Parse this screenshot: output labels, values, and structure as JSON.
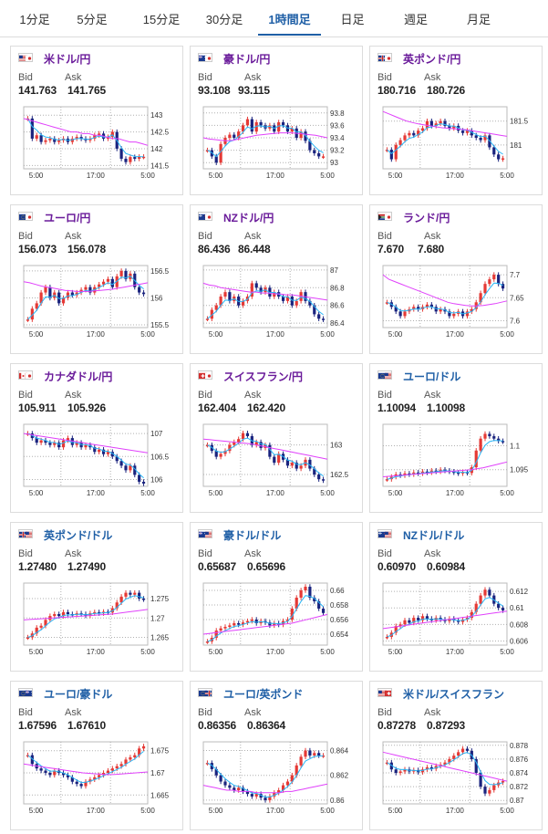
{
  "tabs": [
    {
      "label": "1分足",
      "active": false
    },
    {
      "label": "5分足",
      "active": false
    },
    {
      "label": "15分足",
      "active": false
    },
    {
      "label": "30分足",
      "active": false
    },
    {
      "label": "1時間足",
      "active": true
    },
    {
      "label": "日足",
      "active": false
    },
    {
      "label": "週足",
      "active": false
    },
    {
      "label": "月足",
      "active": false
    }
  ],
  "labels": {
    "bid": "Bid",
    "ask": "Ask"
  },
  "colors": {
    "up": "#e53935",
    "down": "#1a237e",
    "ma_short": "#29b6f6",
    "ma_long": "#e040fb",
    "grid": "#b0b0b0",
    "active_tab": "#1f5fa6",
    "name_jpy": "#6a1b9a",
    "name_usd": "#1f5fa6"
  },
  "pairs": [
    {
      "name": "米ドル/円",
      "bid": "141.763",
      "ask": "141.765",
      "flag": "us",
      "quote": "jp",
      "xticks": [
        "5:00",
        "17:00",
        "5:00"
      ],
      "yticks": [
        "143",
        "142.5",
        "142",
        "141.5"
      ],
      "ymin": 141.4,
      "ymax": 143.25,
      "closes": [
        142.9,
        142.3,
        142.4,
        142.2,
        142.25,
        142.3,
        142.2,
        142.25,
        142.3,
        142.2,
        142.3,
        142.35,
        142.3,
        142.25,
        142.3,
        142.4,
        142.45,
        142.3,
        142.35,
        142.5,
        142.0,
        141.7,
        141.6,
        141.75,
        141.7,
        141.76,
        141.76
      ],
      "ma_long": [
        142.9,
        142.85,
        142.8,
        142.75,
        142.7,
        142.65,
        142.6,
        142.55,
        142.5,
        142.5,
        142.45,
        142.45,
        142.4,
        142.4,
        142.35,
        142.3,
        142.3,
        142.25,
        142.2,
        142.2,
        142.15,
        142.1
      ]
    },
    {
      "name": "豪ドル/円",
      "bid": "93.108",
      "ask": "93.115",
      "flag": "au",
      "quote": "jp",
      "xticks": [
        "5:00",
        "17:00",
        "5:00"
      ],
      "yticks": [
        "93.8",
        "93.6",
        "93.4",
        "93.2",
        "93"
      ],
      "ymin": 92.9,
      "ymax": 93.9,
      "closes": [
        93.2,
        93.1,
        93.0,
        93.3,
        93.4,
        93.45,
        93.4,
        93.5,
        93.6,
        93.7,
        93.5,
        93.65,
        93.6,
        93.55,
        93.6,
        93.5,
        93.65,
        93.6,
        93.5,
        93.55,
        93.4,
        93.5,
        93.35,
        93.2,
        93.15,
        93.1,
        93.1
      ],
      "ma_long": [
        93.4,
        93.38,
        93.37,
        93.36,
        93.35,
        93.36,
        93.38,
        93.4,
        93.42,
        93.44,
        93.45,
        93.46,
        93.47,
        93.48,
        93.48,
        93.48,
        93.47,
        93.46,
        93.45,
        93.44,
        93.42,
        93.4
      ]
    },
    {
      "name": "英ポンド/円",
      "bid": "180.716",
      "ask": "180.726",
      "flag": "gb",
      "quote": "jp",
      "xticks": [
        "5:00",
        "17:00",
        "5:00"
      ],
      "yticks": [
        "181.5",
        "181"
      ],
      "ymin": 180.5,
      "ymax": 181.8,
      "closes": [
        180.9,
        180.7,
        181.0,
        181.1,
        181.2,
        181.25,
        181.2,
        181.3,
        181.35,
        181.5,
        181.4,
        181.45,
        181.5,
        181.4,
        181.35,
        181.4,
        181.3,
        181.25,
        181.3,
        181.2,
        181.15,
        181.1,
        181.2,
        180.95,
        180.8,
        180.7,
        180.72
      ],
      "ma_long": [
        181.7,
        181.65,
        181.6,
        181.55,
        181.5,
        181.47,
        181.44,
        181.42,
        181.4,
        181.38,
        181.36,
        181.35,
        181.34,
        181.33,
        181.32,
        181.3,
        181.28,
        181.26,
        181.24,
        181.22,
        181.2,
        181.18
      ]
    },
    {
      "name": "ユーロ/円",
      "bid": "156.073",
      "ask": "156.078",
      "flag": "eu",
      "quote": "jp",
      "xticks": [
        "5:00",
        "17:00",
        "5:00"
      ],
      "yticks": [
        "156.5",
        "156",
        "155.5"
      ],
      "ymin": 155.45,
      "ymax": 156.6,
      "closes": [
        155.6,
        155.8,
        155.9,
        156.1,
        156.2,
        156.0,
        156.1,
        155.9,
        156.0,
        156.1,
        156.05,
        156.1,
        156.15,
        156.2,
        156.1,
        156.2,
        156.25,
        156.3,
        156.35,
        156.2,
        156.4,
        156.5,
        156.35,
        156.45,
        156.2,
        156.1,
        156.07
      ],
      "ma_long": [
        156.3,
        156.28,
        156.25,
        156.22,
        156.2,
        156.18,
        156.16,
        156.14,
        156.13,
        156.12,
        156.12,
        156.12,
        156.13,
        156.14,
        156.15,
        156.16,
        156.18,
        156.2,
        156.22,
        156.24,
        156.26,
        156.28
      ]
    },
    {
      "name": "NZドル/円",
      "bid": "86.436",
      "ask": "86.448",
      "flag": "nz",
      "quote": "jp",
      "xticks": [
        "5:00",
        "17:00",
        "5:00"
      ],
      "yticks": [
        "87",
        "86.8",
        "86.6",
        "86.4"
      ],
      "ymin": 86.35,
      "ymax": 87.05,
      "closes": [
        86.45,
        86.55,
        86.6,
        86.7,
        86.75,
        86.65,
        86.7,
        86.6,
        86.65,
        86.7,
        86.85,
        86.8,
        86.75,
        86.8,
        86.7,
        86.75,
        86.7,
        86.65,
        86.7,
        86.6,
        86.65,
        86.75,
        86.65,
        86.6,
        86.5,
        86.45,
        86.44
      ],
      "ma_long": [
        86.85,
        86.83,
        86.82,
        86.8,
        86.79,
        86.78,
        86.77,
        86.76,
        86.75,
        86.75,
        86.74,
        86.74,
        86.73,
        86.73,
        86.72,
        86.72,
        86.71,
        86.7,
        86.69,
        86.68,
        86.67,
        86.66
      ]
    },
    {
      "name": "ランド/円",
      "bid": "7.670",
      "ask": "7.680",
      "flag": "za",
      "quote": "jp",
      "xticks": [
        "5:00",
        "17:00",
        "5:00"
      ],
      "yticks": [
        "7.7",
        "7.65",
        "7.6"
      ],
      "ymin": 7.585,
      "ymax": 7.72,
      "closes": [
        7.64,
        7.63,
        7.62,
        7.61,
        7.62,
        7.625,
        7.63,
        7.625,
        7.63,
        7.635,
        7.63,
        7.62,
        7.625,
        7.62,
        7.61,
        7.615,
        7.62,
        7.61,
        7.62,
        7.625,
        7.64,
        7.66,
        7.68,
        7.69,
        7.7,
        7.68,
        7.67
      ],
      "ma_long": [
        7.7,
        7.69,
        7.685,
        7.68,
        7.675,
        7.67,
        7.665,
        7.66,
        7.655,
        7.65,
        7.645,
        7.64,
        7.637,
        7.635,
        7.633,
        7.632,
        7.632,
        7.633,
        7.635,
        7.637,
        7.64,
        7.643
      ]
    },
    {
      "name": "カナダドル/円",
      "bid": "105.911",
      "ask": "105.926",
      "flag": "ca",
      "quote": "jp",
      "xticks": [
        "5:00",
        "17:00",
        "5:00"
      ],
      "yticks": [
        "107",
        "106.5",
        "106"
      ],
      "ymin": 105.85,
      "ymax": 107.2,
      "closes": [
        107.0,
        106.9,
        106.8,
        106.85,
        106.8,
        106.75,
        106.8,
        106.7,
        106.85,
        106.9,
        106.75,
        106.8,
        106.7,
        106.75,
        106.7,
        106.6,
        106.65,
        106.55,
        106.6,
        106.5,
        106.4,
        106.3,
        106.2,
        106.3,
        106.1,
        105.95,
        105.91
      ],
      "ma_long": [
        107.0,
        106.98,
        106.96,
        106.94,
        106.92,
        106.9,
        106.88,
        106.86,
        106.84,
        106.82,
        106.8,
        106.78,
        106.76,
        106.74,
        106.72,
        106.7,
        106.68,
        106.66,
        106.64,
        106.62,
        106.6,
        106.58
      ]
    },
    {
      "name": "スイスフラン/円",
      "bid": "162.404",
      "ask": "162.420",
      "flag": "ch",
      "quote": "jp",
      "xticks": [
        "5:00",
        "17:00",
        "5:00"
      ],
      "yticks": [
        "163",
        "162.5"
      ],
      "ymin": 162.3,
      "ymax": 163.35,
      "closes": [
        163.0,
        162.9,
        162.8,
        162.85,
        162.9,
        163.0,
        163.05,
        163.1,
        163.2,
        163.15,
        163.0,
        163.05,
        162.95,
        163.0,
        162.8,
        162.7,
        162.85,
        162.75,
        162.65,
        162.7,
        162.6,
        162.65,
        162.75,
        162.6,
        162.5,
        162.42,
        162.4
      ],
      "ma_long": [
        163.1,
        163.09,
        163.08,
        163.07,
        163.06,
        163.05,
        163.04,
        163.03,
        163.02,
        163.0,
        162.98,
        162.96,
        162.94,
        162.92,
        162.9,
        162.88,
        162.86,
        162.84,
        162.82,
        162.8,
        162.78,
        162.76
      ]
    },
    {
      "name": "ユーロ/ドル",
      "bid": "1.10094",
      "ask": "1.10098",
      "flag": "eu",
      "quote": "us",
      "xticks": [
        "5:00",
        "17:00",
        "5:00"
      ],
      "yticks": [
        "1.1",
        "1.095"
      ],
      "ymin": 1.0915,
      "ymax": 1.1045,
      "closes": [
        1.093,
        1.0935,
        1.094,
        1.0938,
        1.0942,
        1.094,
        1.0944,
        1.0942,
        1.0946,
        1.0944,
        1.0948,
        1.0946,
        1.095,
        1.0948,
        1.0946,
        1.0944,
        1.0942,
        1.0945,
        1.0943,
        1.0955,
        1.099,
        1.1015,
        1.1025,
        1.102,
        1.1015,
        1.101,
        1.1009
      ],
      "ma_long": [
        1.0935,
        1.0936,
        1.0937,
        1.0938,
        1.0939,
        1.094,
        1.0941,
        1.0942,
        1.0943,
        1.0944,
        1.0945,
        1.0946,
        1.0947,
        1.0948,
        1.0949,
        1.095,
        1.0952,
        1.0954,
        1.0957,
        1.096,
        1.0963,
        1.0966
      ]
    },
    {
      "name": "英ポンド/ドル",
      "bid": "1.27480",
      "ask": "1.27490",
      "flag": "gb",
      "quote": "us",
      "xticks": [
        "5:00",
        "17:00",
        "5:00"
      ],
      "yticks": [
        "1.275",
        "1.27",
        "1.265"
      ],
      "ymin": 1.263,
      "ymax": 1.279,
      "closes": [
        1.265,
        1.266,
        1.2675,
        1.268,
        1.2695,
        1.2705,
        1.271,
        1.2705,
        1.2715,
        1.271,
        1.2708,
        1.2712,
        1.271,
        1.2706,
        1.2712,
        1.2715,
        1.2712,
        1.2716,
        1.2714,
        1.2725,
        1.274,
        1.2755,
        1.2765,
        1.276,
        1.2765,
        1.275,
        1.2748
      ],
      "ma_long": [
        1.2695,
        1.2696,
        1.2697,
        1.2698,
        1.2699,
        1.27,
        1.2701,
        1.2702,
        1.2703,
        1.2704,
        1.2705,
        1.2706,
        1.2707,
        1.2708,
        1.2709,
        1.271,
        1.2712,
        1.2714,
        1.2716,
        1.2718,
        1.272,
        1.2722
      ]
    },
    {
      "name": "豪ドル/ドル",
      "bid": "0.65687",
      "ask": "0.65696",
      "flag": "au",
      "quote": "us",
      "xticks": [
        "5:00",
        "17:00",
        "5:00"
      ],
      "yticks": [
        "0.66",
        "0.658",
        "0.656",
        "0.654"
      ],
      "ymin": 0.6525,
      "ymax": 0.661,
      "closes": [
        0.653,
        0.6535,
        0.6545,
        0.6548,
        0.655,
        0.6552,
        0.6555,
        0.6553,
        0.6556,
        0.6558,
        0.656,
        0.6555,
        0.6558,
        0.6556,
        0.6552,
        0.6555,
        0.6553,
        0.6558,
        0.656,
        0.6575,
        0.659,
        0.66,
        0.6605,
        0.659,
        0.6585,
        0.6575,
        0.6569
      ],
      "ma_long": [
        0.654,
        0.6541,
        0.6542,
        0.6543,
        0.6544,
        0.6545,
        0.6546,
        0.6547,
        0.6548,
        0.6549,
        0.655,
        0.6551,
        0.6552,
        0.6553,
        0.6554,
        0.6555,
        0.6557,
        0.6559,
        0.6561,
        0.6563,
        0.6565,
        0.6567
      ]
    },
    {
      "name": "NZドル/ドル",
      "bid": "0.60970",
      "ask": "0.60984",
      "flag": "nz",
      "quote": "us",
      "xticks": [
        "5:00",
        "17:00",
        "5:00"
      ],
      "yticks": [
        "0.612",
        "0.61",
        "0.608",
        "0.606"
      ],
      "ymin": 0.6055,
      "ymax": 0.613,
      "closes": [
        0.6065,
        0.607,
        0.6078,
        0.608,
        0.6085,
        0.6082,
        0.6088,
        0.6085,
        0.609,
        0.6087,
        0.6085,
        0.6088,
        0.6086,
        0.6084,
        0.6087,
        0.6085,
        0.6083,
        0.6086,
        0.6088,
        0.6095,
        0.6105,
        0.6115,
        0.6122,
        0.6115,
        0.6105,
        0.61,
        0.6097
      ],
      "ma_long": [
        0.6075,
        0.6076,
        0.6077,
        0.6078,
        0.6079,
        0.608,
        0.6081,
        0.6082,
        0.6083,
        0.6084,
        0.6085,
        0.6086,
        0.6087,
        0.6088,
        0.6089,
        0.609,
        0.6091,
        0.6092,
        0.6093,
        0.6094,
        0.6095,
        0.6096
      ]
    },
    {
      "name": "ユーロ/豪ドル",
      "bid": "1.67596",
      "ask": "1.67610",
      "flag": "eu",
      "quote": "au",
      "xticks": [
        "5:00",
        "17:00",
        "5:00"
      ],
      "yticks": [
        "1.675",
        "1.67",
        "1.665"
      ],
      "ymin": 1.663,
      "ymax": 1.677,
      "closes": [
        1.674,
        1.672,
        1.671,
        1.6705,
        1.67,
        1.6695,
        1.6705,
        1.67,
        1.6695,
        1.669,
        1.668,
        1.6675,
        1.667,
        1.668,
        1.6685,
        1.669,
        1.6695,
        1.67,
        1.6705,
        1.671,
        1.6715,
        1.672,
        1.673,
        1.6735,
        1.674,
        1.6755,
        1.676
      ],
      "ma_long": [
        1.672,
        1.6718,
        1.6716,
        1.6714,
        1.6712,
        1.671,
        1.6708,
        1.6706,
        1.6704,
        1.6702,
        1.67,
        1.6699,
        1.6698,
        1.6697,
        1.6696,
        1.6696,
        1.6697,
        1.6698,
        1.6699,
        1.67,
        1.6701,
        1.6702
      ]
    },
    {
      "name": "ユーロ/英ポンド",
      "bid": "0.86356",
      "ask": "0.86364",
      "flag": "eu",
      "quote": "gb",
      "xticks": [
        "5:00",
        "17:00",
        "5:00"
      ],
      "yticks": [
        "0.864",
        "0.862",
        "0.86"
      ],
      "ymin": 0.8597,
      "ymax": 0.8647,
      "closes": [
        0.863,
        0.8625,
        0.862,
        0.8615,
        0.8612,
        0.861,
        0.8608,
        0.861,
        0.8607,
        0.8605,
        0.8603,
        0.8605,
        0.8602,
        0.86,
        0.8603,
        0.8606,
        0.8608,
        0.8612,
        0.8615,
        0.862,
        0.8628,
        0.8635,
        0.864,
        0.8636,
        0.8638,
        0.8636,
        0.8636
      ],
      "ma_long": [
        0.8612,
        0.8611,
        0.861,
        0.8609,
        0.8608,
        0.8608,
        0.8607,
        0.8607,
        0.8607,
        0.8606,
        0.8606,
        0.8606,
        0.8606,
        0.8606,
        0.8607,
        0.8607,
        0.8608,
        0.8609,
        0.861,
        0.8611,
        0.8612,
        0.8613
      ]
    },
    {
      "name": "米ドル/スイスフラン",
      "bid": "0.87278",
      "ask": "0.87293",
      "flag": "us",
      "quote": "ch",
      "xticks": [
        "5:00",
        "17:00",
        "5:00"
      ],
      "yticks": [
        "0.878",
        "0.876",
        "0.874",
        "0.872",
        "0.87"
      ],
      "ymin": 0.8695,
      "ymax": 0.8785,
      "closes": [
        0.8755,
        0.8745,
        0.874,
        0.8742,
        0.8745,
        0.8742,
        0.8744,
        0.8741,
        0.8745,
        0.8748,
        0.8746,
        0.875,
        0.8752,
        0.8755,
        0.876,
        0.8765,
        0.877,
        0.8775,
        0.8772,
        0.876,
        0.874,
        0.872,
        0.871,
        0.8715,
        0.8722,
        0.8726,
        0.8728
      ],
      "ma_long": [
        0.877,
        0.8768,
        0.8766,
        0.8764,
        0.8762,
        0.876,
        0.8758,
        0.8756,
        0.8754,
        0.8752,
        0.875,
        0.8748,
        0.8746,
        0.8744,
        0.8742,
        0.874,
        0.8738,
        0.8736,
        0.8734,
        0.8732,
        0.873,
        0.8728
      ]
    }
  ]
}
